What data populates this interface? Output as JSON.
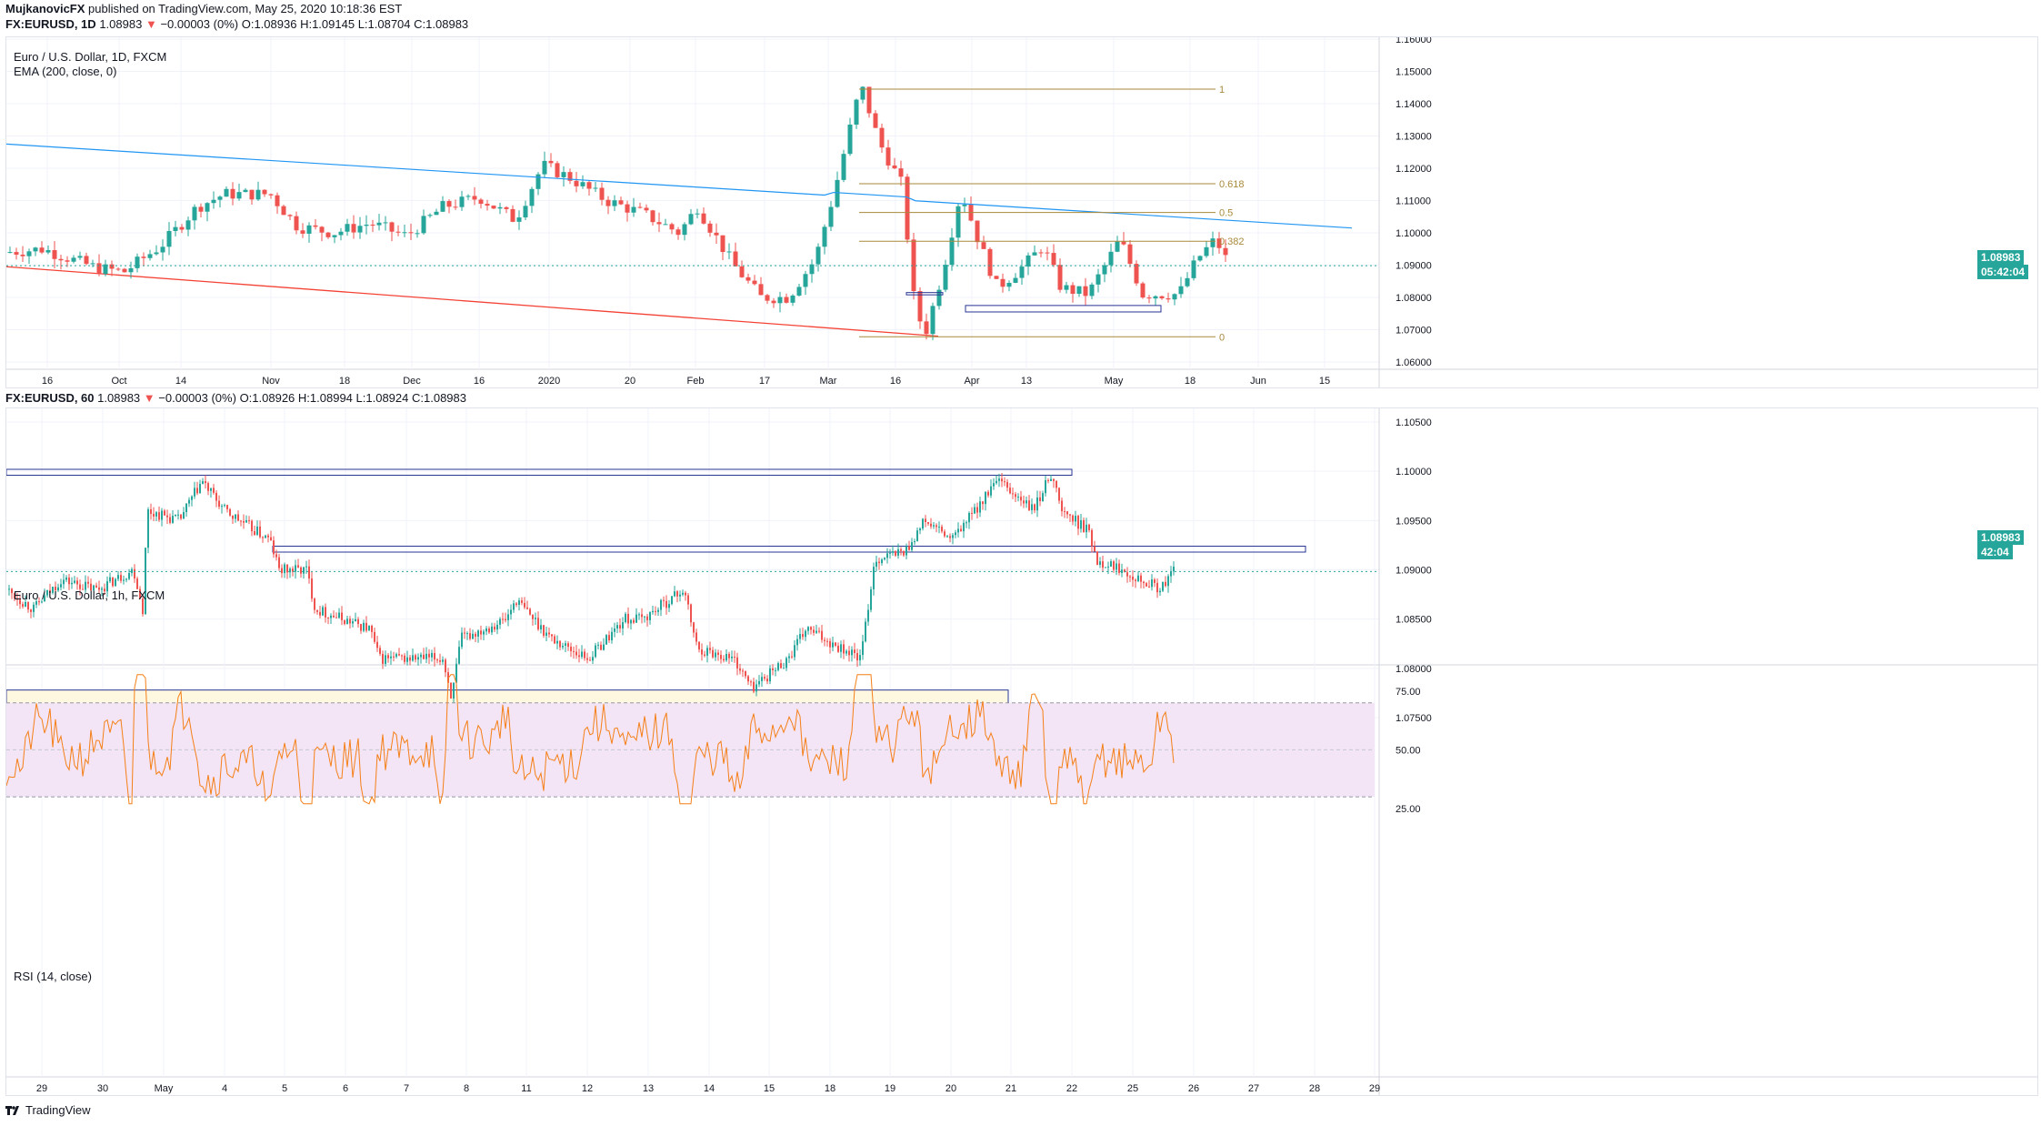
{
  "publish": {
    "author": "MujkanovicFX",
    "text": "published on TradingView.com, May 25, 2020 10:18:36 EST"
  },
  "top": {
    "symbol_line": "FX:EURUSD, 1D",
    "price": "1.08983",
    "change": "−0.00003 (0%)",
    "o": "O:1.08936",
    "h": "H:1.09145",
    "l": "L:1.08704",
    "c": "C:1.08983",
    "title": "Euro / U.S. Dollar, 1D, FXCM",
    "indicator": "EMA (200, close, 0)",
    "y_ticks": [
      "1.16000",
      "1.15000",
      "1.14000",
      "1.13000",
      "1.12000",
      "1.11000",
      "1.10000",
      "1.09000",
      "1.08000",
      "1.07000",
      "1.06000"
    ],
    "x_ticks": [
      "16",
      "Oct",
      "14",
      "Nov",
      "18",
      "Dec",
      "16",
      "2020",
      "20",
      "Feb",
      "17",
      "Mar",
      "16",
      "Apr",
      "13",
      "May",
      "18",
      "Jun",
      "15"
    ],
    "price_badge": "1.08983",
    "time_badge": "05:42:04",
    "fib_labels": [
      "1",
      "0.618",
      "0.5",
      "0.382",
      "0"
    ]
  },
  "bottom": {
    "symbol_line": "FX:EURUSD, 60",
    "price": "1.08983",
    "change": "−0.00003 (0%)",
    "o": "O:1.08926",
    "h": "H:1.08994",
    "l": "L:1.08924",
    "c": "C:1.08983",
    "title": "Euro / U.S. Dollar, 1h, FXCM",
    "y_ticks": [
      "1.10500",
      "1.10000",
      "1.09500",
      "1.09000",
      "1.08500",
      "1.08000",
      "1.07500"
    ],
    "price_badge": "1.08983",
    "time_badge": "42:04",
    "rsi_label": "RSI (14, close)",
    "rsi_ticks": [
      "75.00",
      "50.00",
      "25.00"
    ],
    "x_ticks": [
      "29",
      "30",
      "May",
      "4",
      "5",
      "6",
      "7",
      "8",
      "11",
      "12",
      "13",
      "14",
      "15",
      "18",
      "19",
      "20",
      "21",
      "22",
      "25",
      "26",
      "27",
      "28",
      "29"
    ]
  },
  "footer": {
    "brand": "TradingView"
  },
  "colors": {
    "up": "#26a69a",
    "down": "#ef5350",
    "ema": "#2196f3",
    "fib": "#a98a3a",
    "trend": "#f44336",
    "rsi": "#f57f17"
  },
  "chart_data": [
    {
      "type": "candlestick",
      "title": "Euro / U.S. Dollar, 1D, FXCM",
      "symbol": "FX:EURUSD",
      "ylim": [
        1.06,
        1.16
      ],
      "last_price": 1.08983,
      "series": [
        {
          "name": "EMA (200, close, 0)",
          "type": "line"
        }
      ],
      "fib_levels": [
        {
          "label": "1",
          "value": 1.1445
        },
        {
          "label": "0.618",
          "value": 1.1152
        },
        {
          "label": "0.5",
          "value": 1.1063
        },
        {
          "label": "0.382",
          "value": 1.0974
        },
        {
          "label": "0",
          "value": 1.0678
        }
      ]
    },
    {
      "type": "candlestick",
      "title": "Euro / U.S. Dollar, 1h, FXCM",
      "symbol": "FX:EURUSD",
      "ylim": [
        1.075,
        1.105
      ],
      "last_price": 1.08983,
      "zones": [
        {
          "from": 1.0998,
          "to": 1.1002
        },
        {
          "from": 1.0915,
          "to": 1.0924
        },
        {
          "from": 1.0756,
          "to": 1.0775
        }
      ]
    },
    {
      "type": "line",
      "title": "RSI (14, close)",
      "ylim": [
        25,
        85
      ],
      "bands": [
        30,
        70
      ]
    }
  ]
}
